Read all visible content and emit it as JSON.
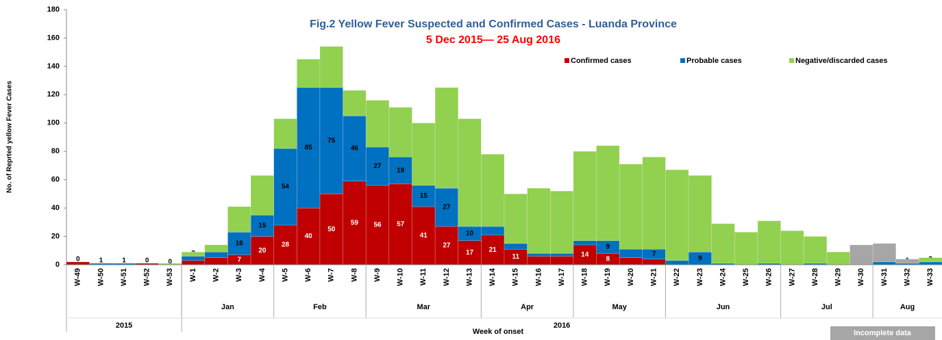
{
  "chart_data": {
    "type": "stacked_bar",
    "title": "Fig.2 Yellow Fever Suspected and Confirmed Cases - Luanda Province",
    "subtitle": "5 Dec 2015—  25  Aug 2016",
    "y_label": "No. of Reprted yellow Fever Cases",
    "x_label": "Week of onset",
    "categories": [
      "W-49",
      "W-50",
      "W-51",
      "W-52",
      "W-53",
      "W-1",
      "W-2",
      "W-3",
      "W-4",
      "W-5",
      "W-6",
      "W-7",
      "W-8",
      "W-9",
      "W-10",
      "W-11",
      "W-12",
      "W-13",
      "W-14",
      "W-15",
      "W-16",
      "W-17",
      "W-18",
      "W-19",
      "W-20",
      "W-21",
      "W-22",
      "W-23",
      "W-24",
      "W-25",
      "W-26",
      "W-27",
      "W-28",
      "W-29",
      "W-30",
      "W-31",
      "W-32",
      "W-33"
    ],
    "months": [
      null,
      null,
      null,
      null,
      null,
      "Jan",
      "Jan",
      "Jan",
      "Jan",
      "Feb",
      "Feb",
      "Feb",
      "Feb",
      "Mar",
      "Mar",
      "Mar",
      "Mar",
      "Mar",
      "Apr",
      "Apr",
      "Apr",
      "Apr",
      "May",
      "May",
      "May",
      "May",
      "Jun",
      "Jun",
      "Jun",
      "Jun",
      "Jun",
      "Jul",
      "Jul",
      "Jul",
      "Jul",
      "Aug",
      "Aug",
      "Aug"
    ],
    "years": [
      "2015",
      "2015",
      "2015",
      "2015",
      "2015",
      "2016",
      "2016",
      "2016",
      "2016",
      "2016",
      "2016",
      "2016",
      "2016",
      "2016",
      "2016",
      "2016",
      "2016",
      "2016",
      "2016",
      "2016",
      "2016",
      "2016",
      "2016",
      "2016",
      "2016",
      "2016",
      "2016",
      "2016",
      "2016",
      "2016",
      "2016",
      "2016",
      "2016",
      "2016",
      "2016",
      "2016",
      "2016",
      "2016"
    ],
    "series": [
      {
        "name": "Confirmed cases",
        "color": "#c00000",
        "values": [
          2,
          0,
          0,
          1,
          0,
          3,
          5,
          7,
          20,
          28,
          40,
          50,
          59,
          56,
          57,
          41,
          27,
          17,
          21,
          11,
          6,
          6,
          14,
          8,
          5,
          4,
          0,
          0,
          0,
          0,
          0,
          0,
          0,
          0,
          0,
          0,
          0,
          0
        ],
        "value_labels": [
          null,
          null,
          null,
          null,
          null,
          "3",
          "5",
          "7",
          "20",
          "28",
          "40",
          "50",
          "59",
          "56",
          "57",
          "41",
          "27",
          "17",
          "21",
          "11",
          "6",
          "6",
          "14",
          "8",
          "5",
          "4",
          null,
          "0",
          null,
          null,
          null,
          null,
          null,
          null,
          null,
          null,
          null,
          null
        ]
      },
      {
        "name": "Probable cases",
        "color": "#0070c0",
        "values": [
          0,
          1,
          1,
          0,
          0,
          3,
          4,
          16,
          15,
          54,
          85,
          75,
          46,
          27,
          19,
          15,
          27,
          10,
          6,
          4,
          2,
          2,
          3,
          9,
          6,
          7,
          3,
          9,
          1,
          0,
          1,
          0,
          1,
          0,
          0,
          2,
          1,
          2
        ],
        "value_labels": [
          "0",
          "1",
          "1",
          "0",
          "0",
          "3",
          "4",
          "16",
          "15",
          "54",
          "85",
          "75",
          "46",
          "27",
          "19",
          "15",
          "27",
          "10",
          "6",
          "4",
          "2",
          "2",
          "3",
          "9",
          "6",
          "7",
          "3",
          "9",
          "1",
          "0",
          "1",
          "0",
          "1",
          "0",
          "0",
          "2",
          "1",
          "2"
        ]
      },
      {
        "name": "Negative/discarded cases",
        "color": "#92d050",
        "values": [
          0,
          0,
          0,
          0,
          1,
          3,
          5,
          18,
          28,
          21,
          20,
          29,
          18,
          33,
          35,
          44,
          71,
          76,
          51,
          35,
          46,
          44,
          63,
          67,
          60,
          65,
          64,
          54,
          28,
          23,
          30,
          24,
          19,
          9,
          0,
          0,
          0,
          3
        ]
      },
      {
        "name": "Incomplete data",
        "color": "#a6a6a6",
        "values": [
          0,
          0,
          0,
          0,
          0,
          0,
          0,
          0,
          0,
          0,
          0,
          0,
          0,
          0,
          0,
          0,
          0,
          0,
          0,
          0,
          0,
          0,
          0,
          0,
          0,
          0,
          0,
          0,
          0,
          0,
          0,
          0,
          0,
          0,
          14,
          13,
          3,
          0
        ]
      }
    ],
    "ylim": [
      0,
      180
    ],
    "yticks": [
      0,
      20,
      40,
      60,
      80,
      100,
      120,
      140,
      160,
      180
    ]
  }
}
